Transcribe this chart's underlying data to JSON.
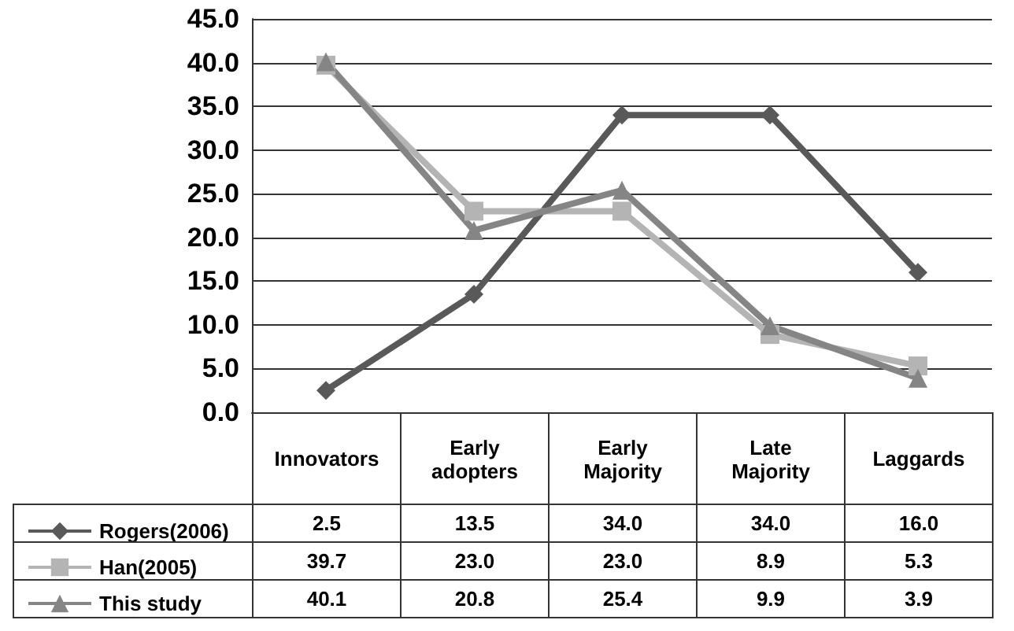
{
  "chart_data": {
    "type": "line",
    "categories": [
      "Innovators",
      "Early adopters",
      "Early Majority",
      "Late Majority",
      "Laggards"
    ],
    "series": [
      {
        "name": "Rogers(2006)",
        "color": "#595959",
        "marker": "diamond",
        "values": [
          2.5,
          13.5,
          34.0,
          34.0,
          16.0
        ],
        "value_labels": [
          "2.5",
          "13.5",
          "34.0",
          "34.0",
          "16.0"
        ]
      },
      {
        "name": "Han(2005)",
        "color": "#b4b4b4",
        "marker": "square",
        "values": [
          39.7,
          23.0,
          23.0,
          8.9,
          5.3
        ],
        "value_labels": [
          "39.7",
          "23.0",
          "23.0",
          "8.9",
          "5.3"
        ]
      },
      {
        "name": "This study",
        "color": "#858585",
        "marker": "triangle",
        "values": [
          40.1,
          20.8,
          25.4,
          9.9,
          3.9
        ],
        "value_labels": [
          "40.1",
          "20.8",
          "25.4",
          "9.9",
          "3.9"
        ]
      }
    ],
    "ylim": [
      0,
      45
    ],
    "yticks": [
      {
        "value": 0,
        "label": "0.0"
      },
      {
        "value": 5,
        "label": "5.0"
      },
      {
        "value": 10,
        "label": "10.0"
      },
      {
        "value": 15,
        "label": "15.0"
      },
      {
        "value": 20,
        "label": "20.0"
      },
      {
        "value": 25,
        "label": "25.0"
      },
      {
        "value": 30,
        "label": "30.0"
      },
      {
        "value": 35,
        "label": "35.0"
      },
      {
        "value": 40,
        "label": "40.0"
      },
      {
        "value": 45,
        "label": "45.0"
      }
    ],
    "grid": "y",
    "legend": "bottom left"
  }
}
